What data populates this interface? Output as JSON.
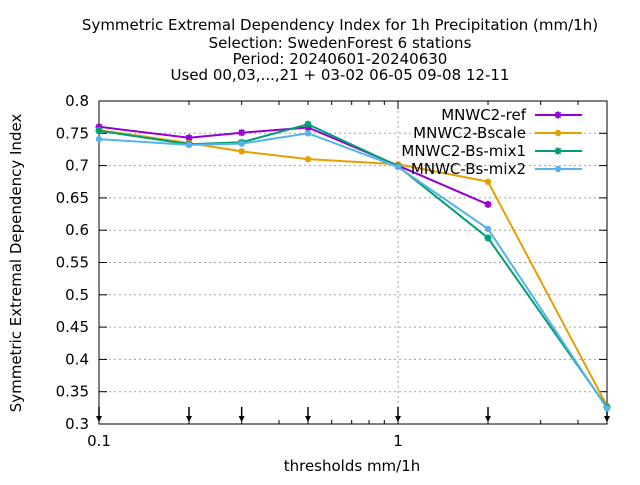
{
  "title_lines": [
    "Symmetric Extremal Dependency Index  for 1h Precipitation (mm/1h)",
    "Selection: SwedenForest      6 stations",
    "Period: 20240601-20240630",
    "Used 00,03,...,21 + 03-02 06-05 09-08 12-11"
  ],
  "chart_data": {
    "type": "line",
    "xlabel": "thresholds mm/1h",
    "ylabel": "Symmetric Extremal Dependency Index",
    "xscale": "log",
    "xlim": [
      0.1,
      5
    ],
    "ylim": [
      0.3,
      0.8
    ],
    "xticks": [
      {
        "value": 0.1,
        "label": "0.1"
      },
      {
        "value": 1,
        "label": "1"
      }
    ],
    "xminor_ticks": [
      0.2,
      0.3,
      0.4,
      0.5,
      0.6,
      0.7,
      0.8,
      0.9,
      2,
      3,
      4,
      5
    ],
    "yticks": [
      0.3,
      0.35,
      0.4,
      0.45,
      0.5,
      0.55,
      0.6,
      0.65,
      0.7,
      0.75,
      0.8
    ],
    "ytick_labels": [
      "0.3",
      "0.35",
      "0.4",
      "0.45",
      "0.5",
      "0.55",
      "0.6",
      "0.65",
      "0.7",
      "0.75",
      "0.8"
    ],
    "grid": true,
    "legend_position": "top-right",
    "threshold_arrows": [
      0.1,
      0.2,
      0.3,
      0.5,
      1,
      2,
      5
    ],
    "series": [
      {
        "name": "MNWC2-ref",
        "color": "#9400d3",
        "marker": "star",
        "x": [
          0.1,
          0.2,
          0.3,
          0.5,
          1,
          2
        ],
        "y": [
          0.76,
          0.743,
          0.751,
          0.759,
          0.7,
          0.64
        ]
      },
      {
        "name": "MNWC2-Bscale",
        "color": "#e69f00",
        "marker": "circle",
        "x": [
          0.1,
          0.2,
          0.3,
          0.5,
          1,
          2,
          5
        ],
        "y": [
          0.755,
          0.735,
          0.722,
          0.71,
          0.702,
          0.675,
          0.328
        ]
      },
      {
        "name": "MNWC2-Bs-mix1",
        "color": "#009e73",
        "marker": "star",
        "x": [
          0.1,
          0.2,
          0.3,
          0.5,
          1,
          2,
          5
        ],
        "y": [
          0.754,
          0.733,
          0.736,
          0.764,
          0.699,
          0.588,
          0.326
        ]
      },
      {
        "name": "MNWC-Bs-mix2",
        "color": "#56b4e9",
        "marker": "circle",
        "x": [
          0.1,
          0.2,
          0.3,
          0.5,
          1,
          2,
          5
        ],
        "y": [
          0.741,
          0.732,
          0.734,
          0.75,
          0.698,
          0.602,
          0.324
        ]
      }
    ]
  }
}
